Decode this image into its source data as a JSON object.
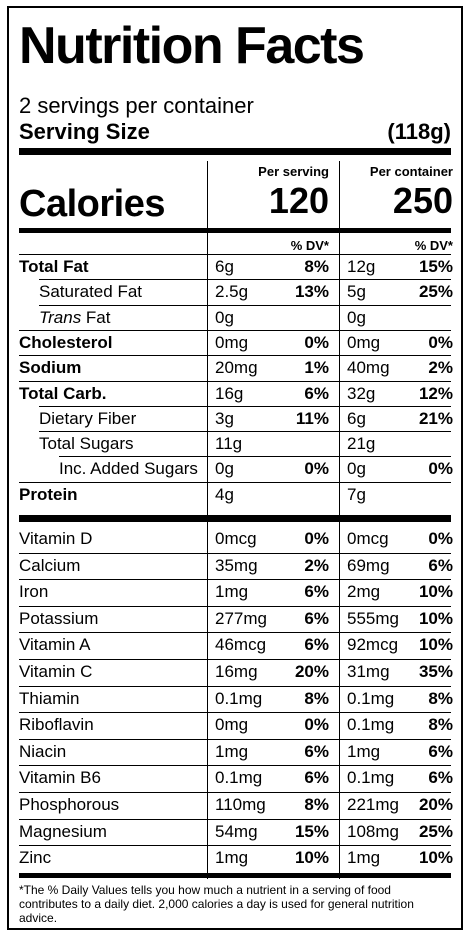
{
  "label": {
    "title": "Nutrition Facts",
    "servings_per_container": "2 servings per container",
    "serving_size_label": "Serving Size",
    "serving_size_value": "(118g)",
    "per_serving_header": "Per serving",
    "per_container_header": "Per container",
    "calories_label": "Calories",
    "calories_per_serving": "120",
    "calories_per_container": "250",
    "dv_header_serving": "% DV*",
    "dv_header_container": "% DV*",
    "nutrients": [
      {
        "name": "Total Fat",
        "indent": 0,
        "bold": true,
        "serving_amount": "6g",
        "serving_dv": "8%",
        "container_amount": "12g",
        "container_dv": "15%"
      },
      {
        "name": "Saturated Fat",
        "indent": 1,
        "serving_amount": "2.5g",
        "serving_dv": "13%",
        "container_amount": "5g",
        "container_dv": "25%"
      },
      {
        "name": "Trans",
        "name_suffix": " Fat",
        "indent": 1,
        "italic_prefix": true,
        "serving_amount": "0g",
        "serving_dv": "",
        "container_amount": "0g",
        "container_dv": ""
      },
      {
        "name": "Cholesterol",
        "indent": 0,
        "bold": true,
        "serving_amount": "0mg",
        "serving_dv": "0%",
        "container_amount": "0mg",
        "container_dv": "0%"
      },
      {
        "name": "Sodium",
        "indent": 0,
        "bold": true,
        "serving_amount": "20mg",
        "serving_dv": "1%",
        "container_amount": "40mg",
        "container_dv": "2%"
      },
      {
        "name": "Total Carb.",
        "indent": 0,
        "bold": true,
        "serving_amount": "16g",
        "serving_dv": "6%",
        "container_amount": "32g",
        "container_dv": "12%"
      },
      {
        "name": "Dietary Fiber",
        "indent": 1,
        "serving_amount": "3g",
        "serving_dv": "11%",
        "container_amount": "6g",
        "container_dv": "21%"
      },
      {
        "name": "Total Sugars",
        "indent": 1,
        "serving_amount": "11g",
        "serving_dv": "",
        "container_amount": "21g",
        "container_dv": ""
      },
      {
        "name": "Inc. Added Sugars",
        "indent": 2,
        "serving_amount": "0g",
        "serving_dv": "0%",
        "container_amount": "0g",
        "container_dv": "0%"
      },
      {
        "name": "Protein",
        "indent": 0,
        "bold": true,
        "serving_amount": "4g",
        "serving_dv": "",
        "container_amount": "7g",
        "container_dv": ""
      }
    ],
    "vitamins": [
      {
        "name": "Vitamin D",
        "serving_amount": "0mcg",
        "serving_dv": "0%",
        "container_amount": "0mcg",
        "container_dv": "0%"
      },
      {
        "name": "Calcium",
        "serving_amount": "35mg",
        "serving_dv": "2%",
        "container_amount": "69mg",
        "container_dv": "6%"
      },
      {
        "name": "Iron",
        "serving_amount": "1mg",
        "serving_dv": "6%",
        "container_amount": "2mg",
        "container_dv": "10%"
      },
      {
        "name": "Potassium",
        "serving_amount": "277mg",
        "serving_dv": "6%",
        "container_amount": "555mg",
        "container_dv": "10%"
      },
      {
        "name": "Vitamin A",
        "serving_amount": "46mcg",
        "serving_dv": "6%",
        "container_amount": "92mcg",
        "container_dv": "10%"
      },
      {
        "name": "Vitamin C",
        "serving_amount": "16mg",
        "serving_dv": "20%",
        "container_amount": "31mg",
        "container_dv": "35%"
      },
      {
        "name": "Thiamin",
        "serving_amount": "0.1mg",
        "serving_dv": "8%",
        "container_amount": "0.1mg",
        "container_dv": "8%"
      },
      {
        "name": "Riboflavin",
        "serving_amount": "0mg",
        "serving_dv": "0%",
        "container_amount": "0.1mg",
        "container_dv": "8%"
      },
      {
        "name": "Niacin",
        "serving_amount": "1mg",
        "serving_dv": "6%",
        "container_amount": "1mg",
        "container_dv": "6%"
      },
      {
        "name": "Vitamin B6",
        "serving_amount": "0.1mg",
        "serving_dv": "6%",
        "container_amount": "0.1mg",
        "container_dv": "6%"
      },
      {
        "name": "Phosphorous",
        "serving_amount": "110mg",
        "serving_dv": "8%",
        "container_amount": "221mg",
        "container_dv": "20%"
      },
      {
        "name": "Magnesium",
        "serving_amount": "54mg",
        "serving_dv": "15%",
        "container_amount": "108mg",
        "container_dv": "25%"
      },
      {
        "name": "Zinc",
        "serving_amount": "1mg",
        "serving_dv": "10%",
        "container_amount": "1mg",
        "container_dv": "10%"
      }
    ],
    "footnote": "*The % Daily Values tells you how much a nutrient in a serving of food contributes to a daily diet. 2,000 calories a day is used for general nutrition advice."
  }
}
